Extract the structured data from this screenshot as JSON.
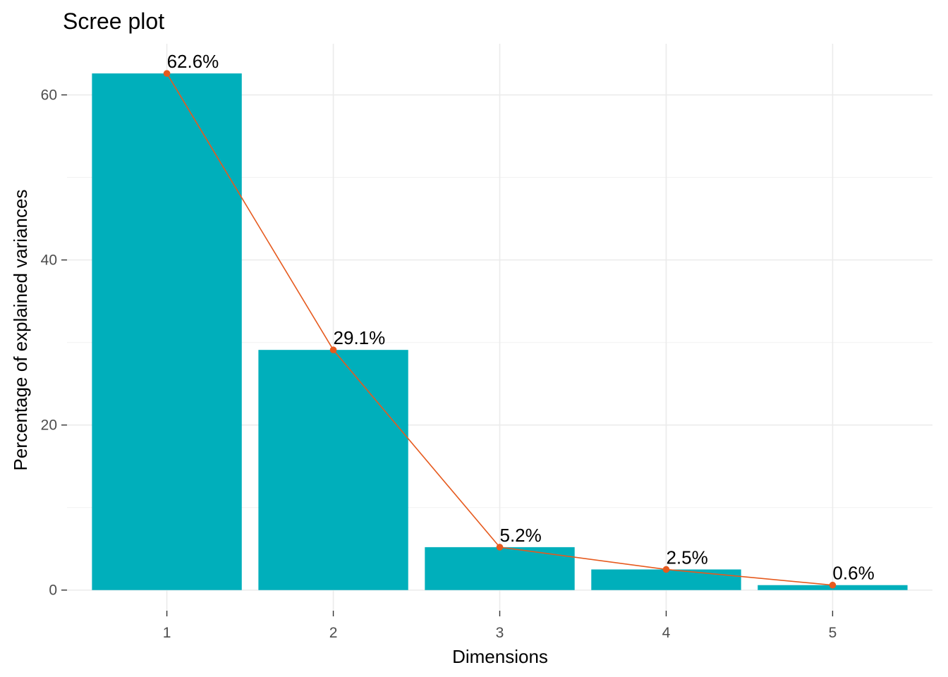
{
  "chart_data": {
    "type": "bar",
    "title": "Scree plot",
    "xlabel": "Dimensions",
    "ylabel": "Percentage of explained variances",
    "categories": [
      "1",
      "2",
      "3",
      "4",
      "5"
    ],
    "values": [
      62.6,
      29.1,
      5.2,
      2.5,
      0.6
    ],
    "labels": [
      "62.6%",
      "29.1%",
      "5.2%",
      "2.5%",
      "0.6%"
    ],
    "yticks": [
      0,
      20,
      40,
      60
    ],
    "ylim": [
      -2.5,
      66.2
    ],
    "grid": true,
    "legend": "none",
    "overlay_line": true,
    "colors": {
      "bar": "#00AFBB",
      "line": "#E65A1E"
    }
  }
}
